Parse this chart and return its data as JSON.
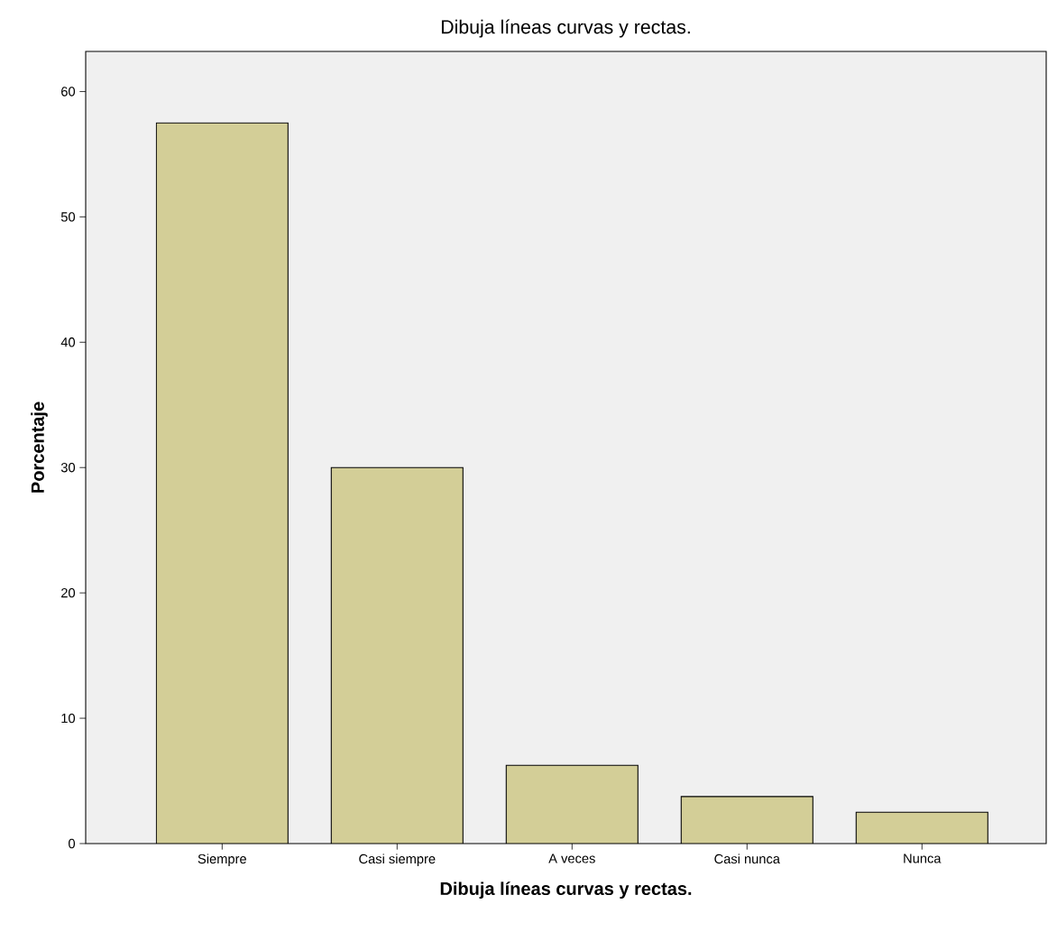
{
  "chart_data": {
    "type": "bar",
    "title": "Dibuja líneas curvas y rectas.",
    "xlabel": "Dibuja líneas curvas y rectas.",
    "ylabel": "Porcentaje",
    "categories": [
      "Siempre",
      "Casi siempre",
      "A veces",
      "Casi nunca",
      "Nunca"
    ],
    "values": [
      57.5,
      30.0,
      6.25,
      3.75,
      2.5
    ],
    "color": "#d3ce97",
    "ylim": [
      0,
      63.2
    ],
    "yticks": [
      0,
      10,
      20,
      30,
      40,
      50,
      60
    ]
  }
}
